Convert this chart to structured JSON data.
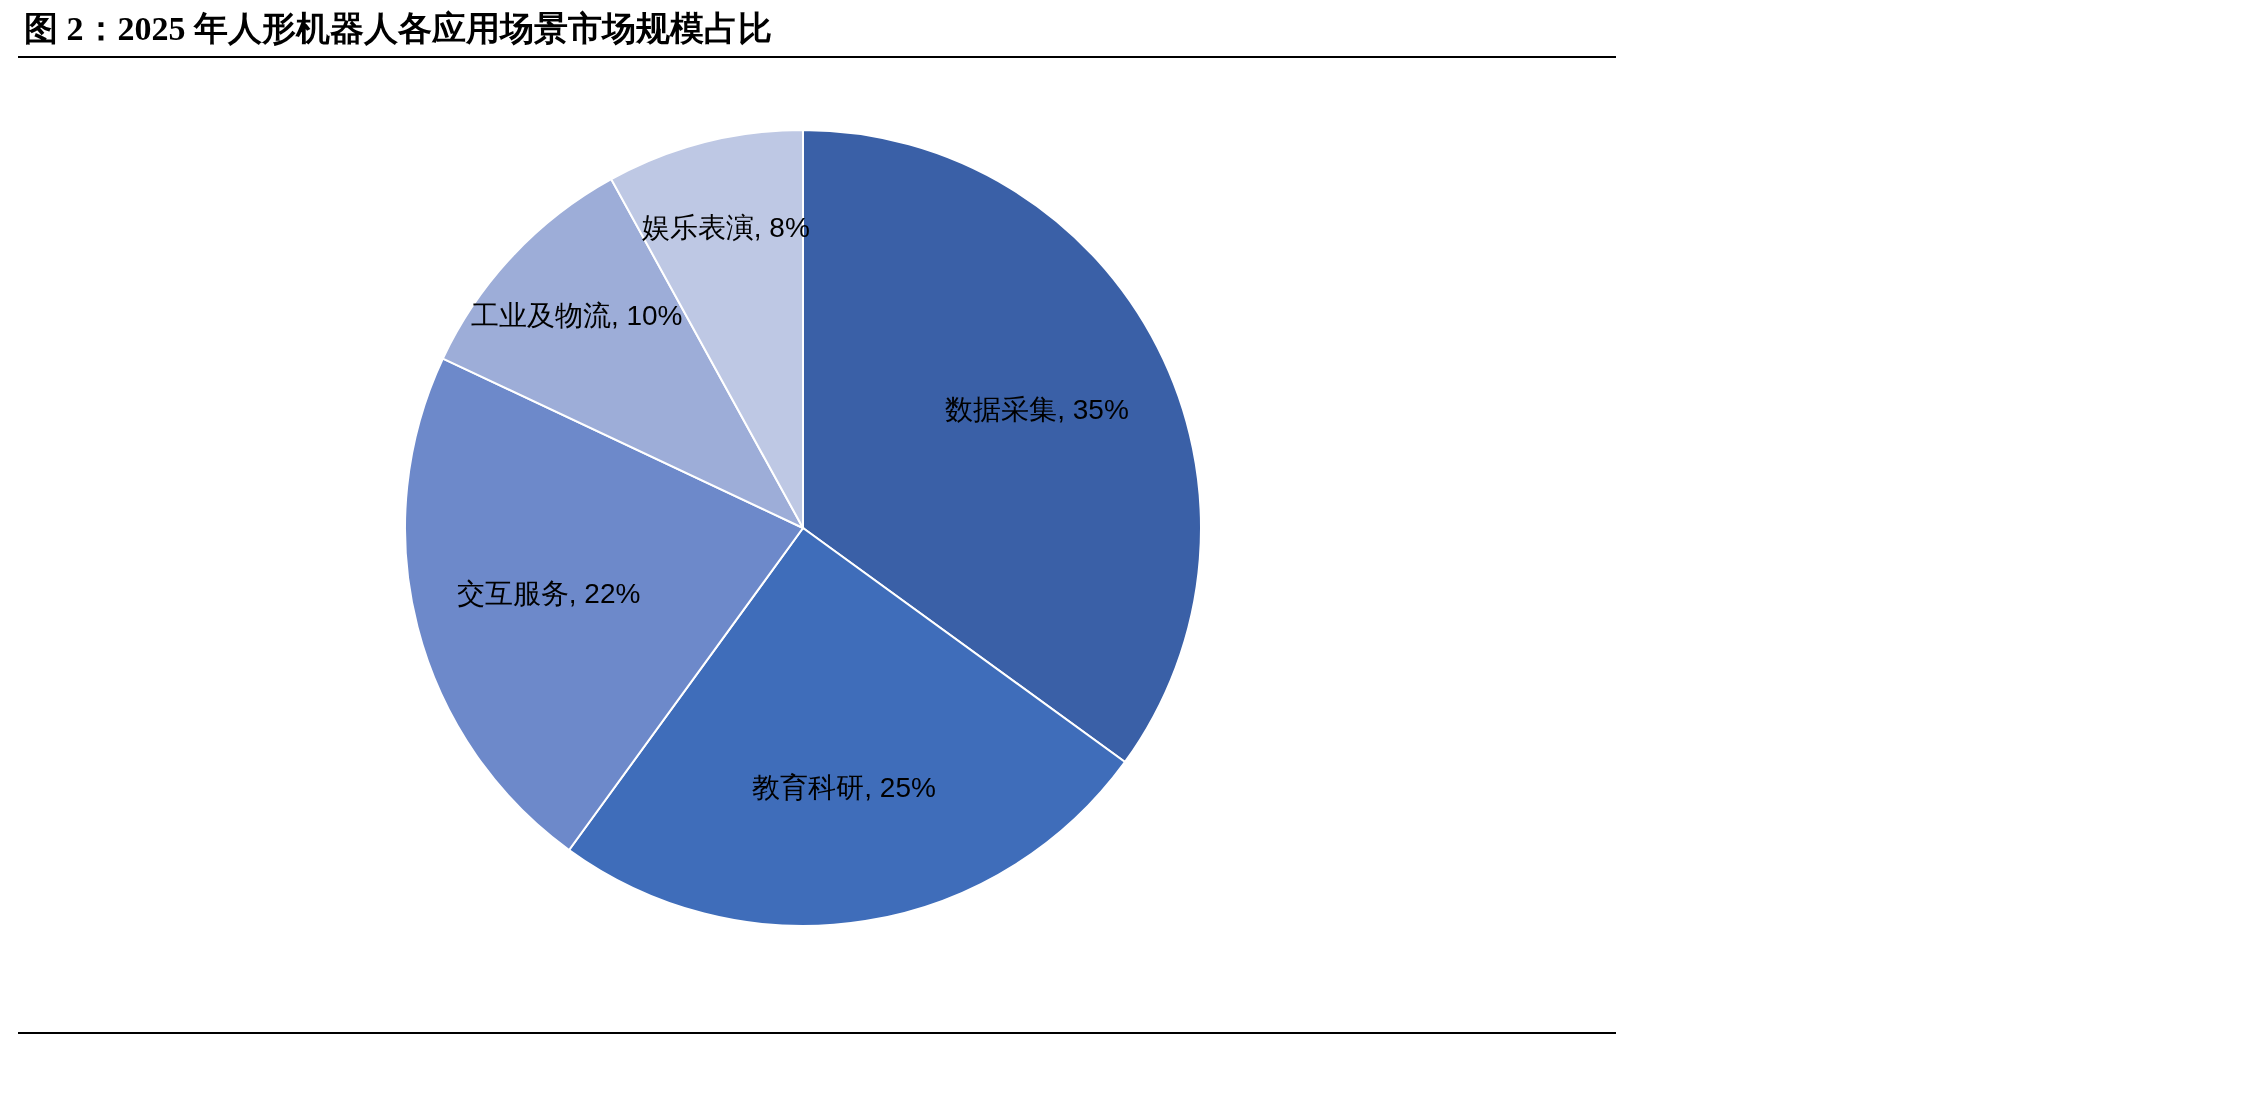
{
  "chart_data": {
    "type": "pie",
    "title": "图 2：2025 年人形机器人各应用场景市场规模占比",
    "categories": [
      "数据采集",
      "教育科研",
      "交互服务",
      "工业及物流",
      "娱乐表演"
    ],
    "values": [
      35,
      25,
      22,
      10,
      8
    ],
    "value_labels": [
      "35%",
      "25%",
      "22%",
      "10%",
      "8%"
    ],
    "colors": [
      "#3a60a7",
      "#3f6dba",
      "#6d89ca",
      "#9dadd8",
      "#bec8e4"
    ],
    "legend": false
  }
}
